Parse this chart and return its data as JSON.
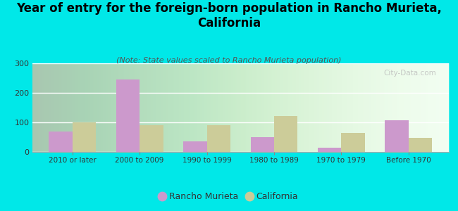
{
  "categories": [
    "2010 or later",
    "2000 to 2009",
    "1990 to 1999",
    "1980 to 1989",
    "1970 to 1979",
    "Before 1970"
  ],
  "rancho_murieta": [
    70,
    245,
    35,
    50,
    15,
    107
  ],
  "california": [
    100,
    90,
    90,
    122,
    65,
    48
  ],
  "rancho_color": "#cc99cc",
  "california_color": "#cccc99",
  "title": "Year of entry for the foreign-born population in Rancho Murieta,\nCalifornia",
  "subtitle": "(Note: State values scaled to Rancho Murieta population)",
  "legend_rancho": "Rancho Murieta",
  "legend_california": "California",
  "bg_color": "#00e8e8",
  "ylim": [
    0,
    300
  ],
  "yticks": [
    0,
    100,
    200,
    300
  ],
  "watermark": "City-Data.com",
  "title_fontsize": 12,
  "subtitle_fontsize": 8
}
